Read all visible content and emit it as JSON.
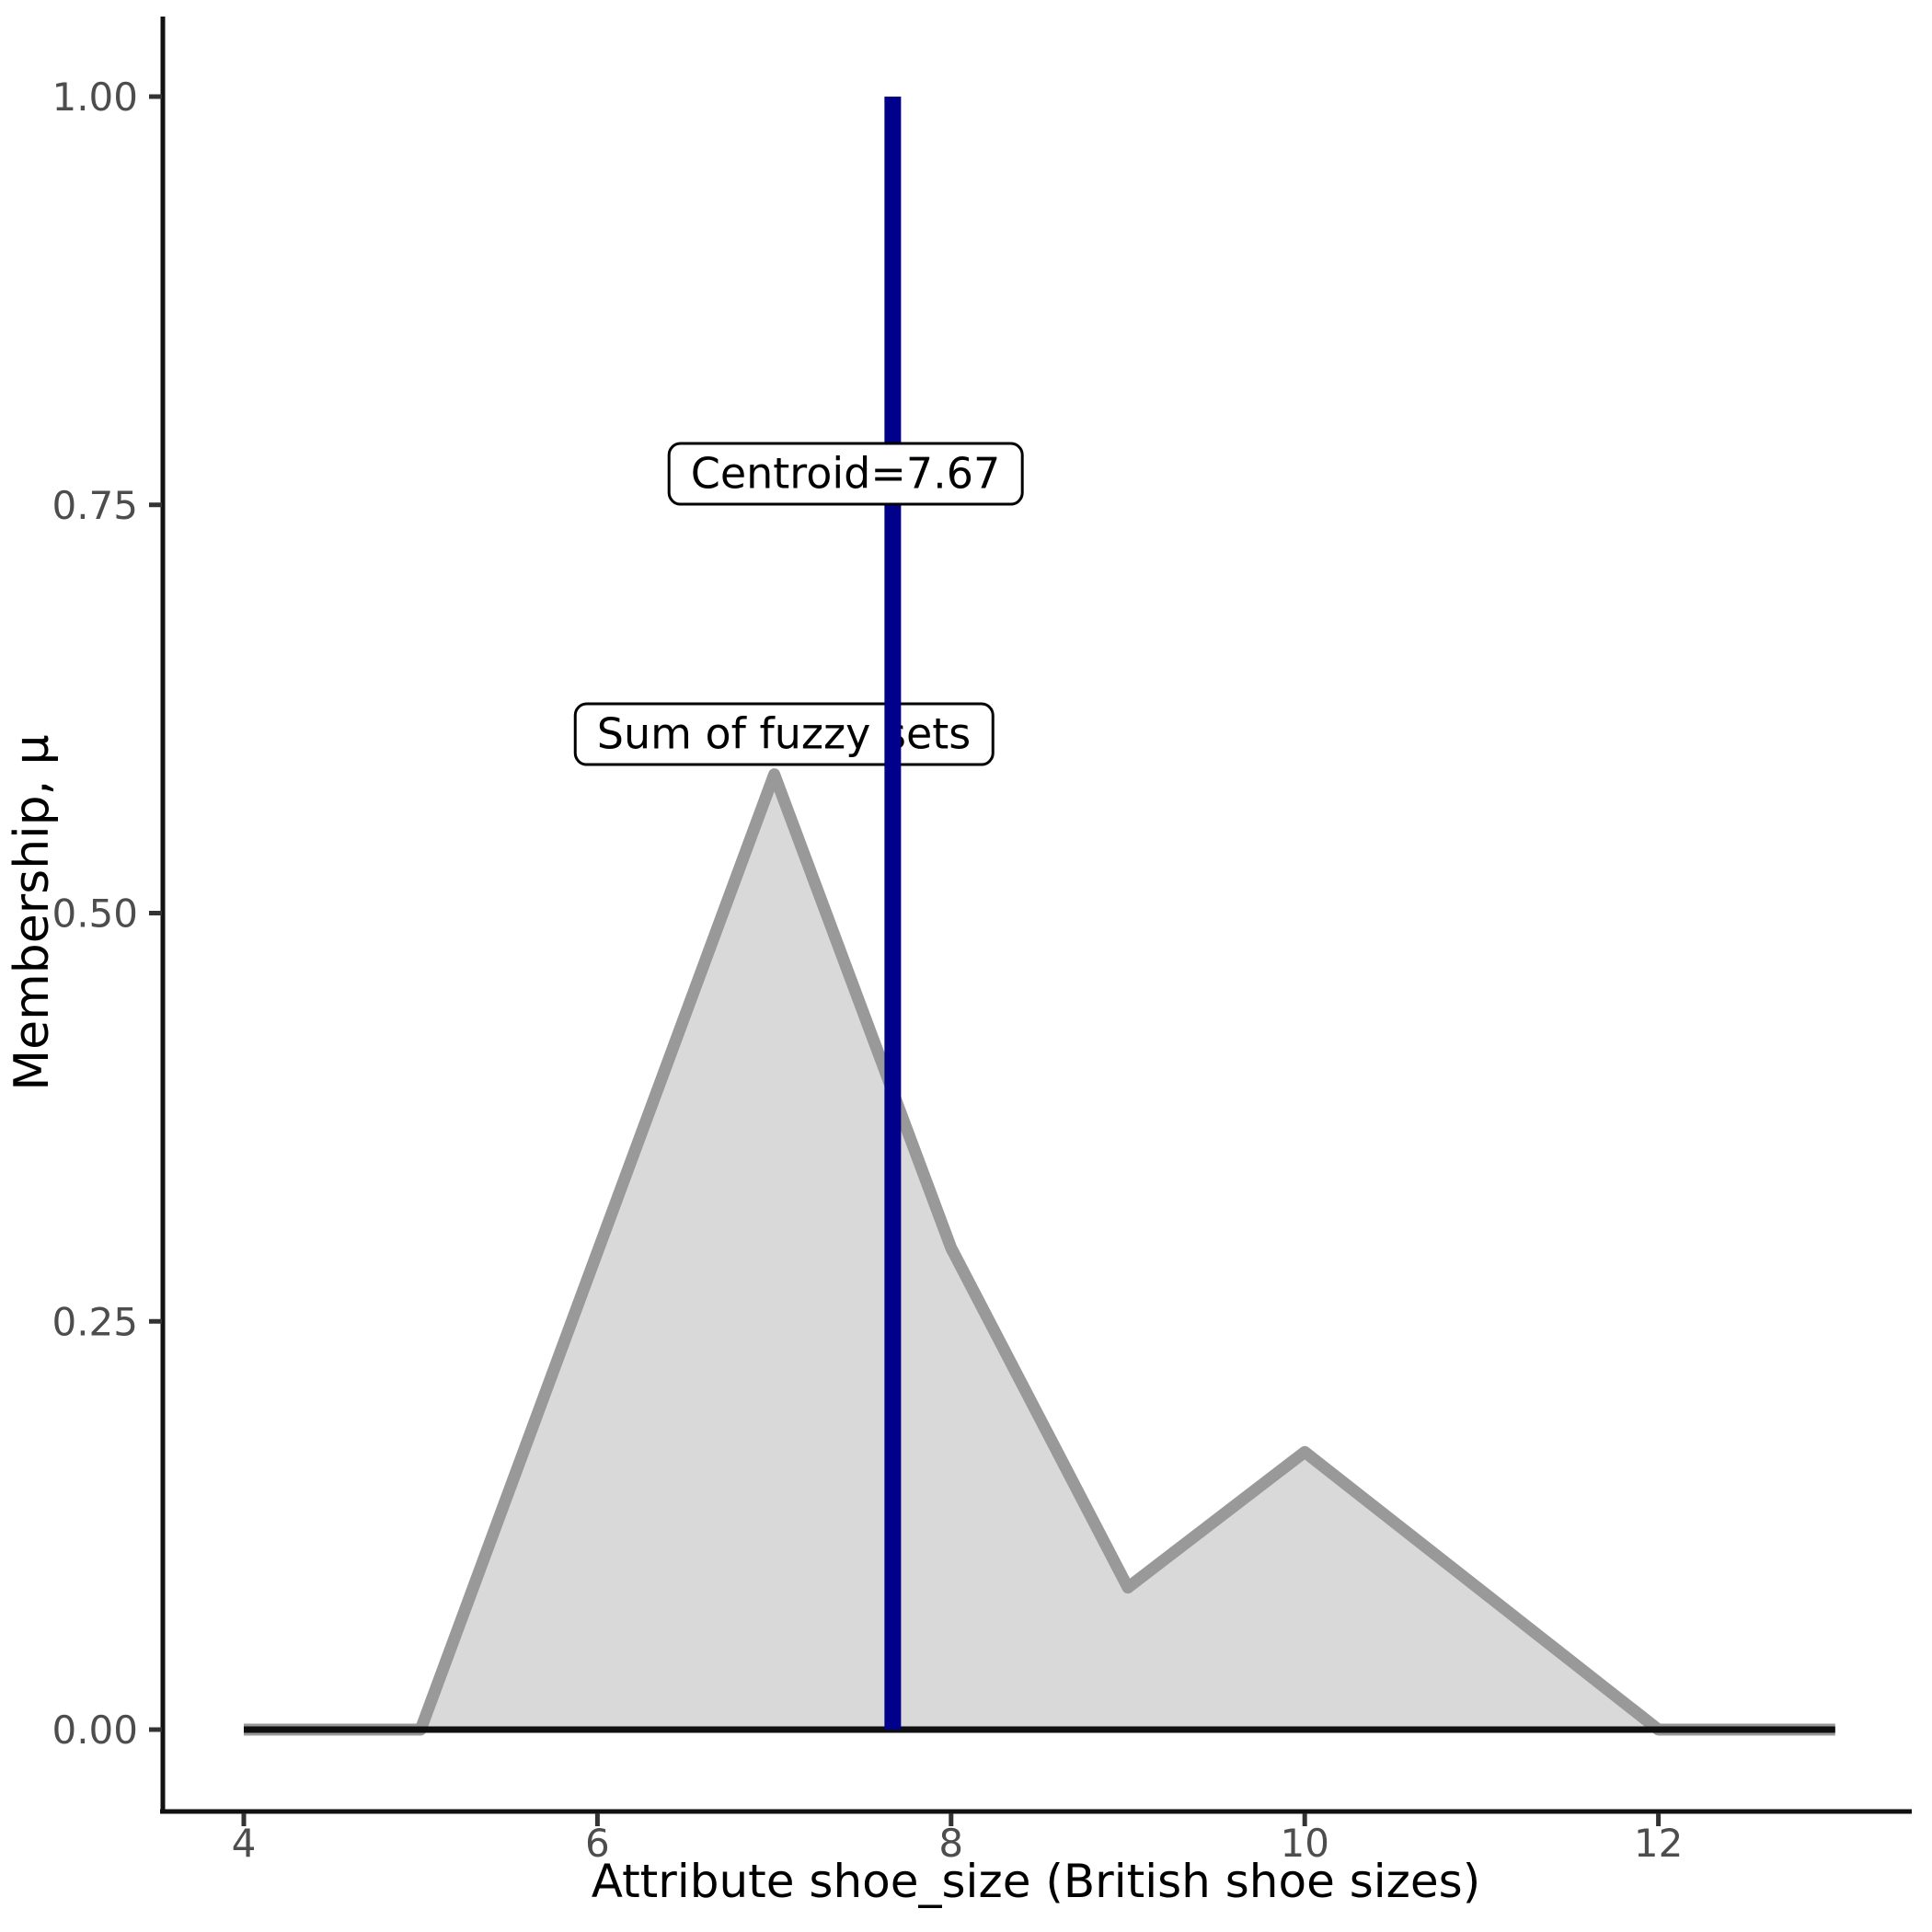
{
  "figure": {
    "background": "#ffffff"
  },
  "annotations": {
    "sum_box": {
      "label": "Sum of fuzzy sets"
    },
    "centroid_box": {
      "label": "Centroid=7.67"
    }
  },
  "chart_data": {
    "type": "area",
    "title": "",
    "xlabel": "Attribute shoe_size (British shoe sizes)",
    "ylabel": "Membership, μ",
    "xlim": [
      3.5,
      13.5
    ],
    "ylim": [
      0,
      1.0
    ],
    "grid": false,
    "legend_position": "none",
    "x_ticks": [
      {
        "value": 4,
        "label": "4"
      },
      {
        "value": 6,
        "label": "6"
      },
      {
        "value": 8,
        "label": "8"
      },
      {
        "value": 10,
        "label": "10"
      },
      {
        "value": 12,
        "label": "12"
      }
    ],
    "y_ticks": [
      {
        "value": 0.0,
        "label": "0.00"
      },
      {
        "value": 0.25,
        "label": "0.25"
      },
      {
        "value": 0.5,
        "label": "0.50"
      },
      {
        "value": 0.75,
        "label": "0.75"
      },
      {
        "value": 1.0,
        "label": "1.00"
      }
    ],
    "series": [
      {
        "name": "Sum of fuzzy sets",
        "type": "area",
        "x": [
          4,
          5,
          7,
          8,
          9,
          10,
          12,
          13
        ],
        "y": [
          0,
          0,
          0.585,
          0.295,
          0.087,
          0.17,
          0,
          0
        ],
        "line_color": "#999999",
        "fill_color": "#d9d9d9"
      },
      {
        "name": "zero baseline",
        "type": "line",
        "x": [
          4,
          13
        ],
        "y": [
          0,
          0
        ],
        "line_color": "#0f0f0f"
      }
    ],
    "vline": {
      "x": 7.67,
      "y0": 0,
      "y1": 1.0,
      "color": "#00008B",
      "label": "Centroid=7.67"
    },
    "colors": {
      "axis": "#111111",
      "tick": "#333333",
      "tick_label": "#4d4d4d",
      "axis_label": "#000000"
    }
  }
}
